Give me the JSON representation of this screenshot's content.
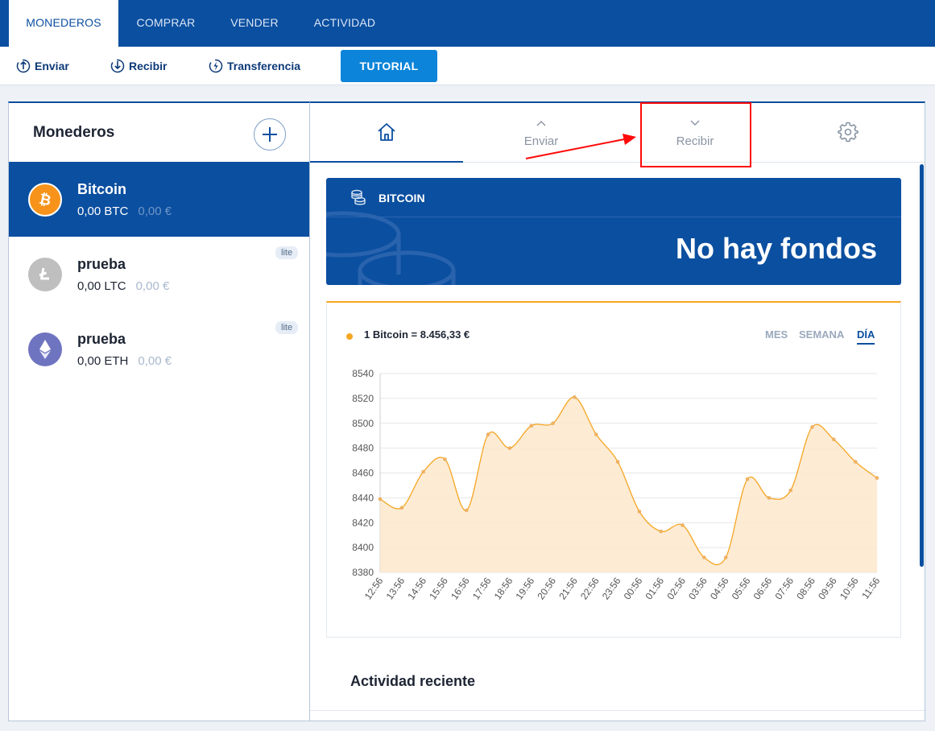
{
  "topnav": {
    "tabs": [
      {
        "label": "MONEDEROS",
        "active": true
      },
      {
        "label": "COMPRAR",
        "active": false
      },
      {
        "label": "VENDER",
        "active": false
      },
      {
        "label": "ACTIVIDAD",
        "active": false
      }
    ]
  },
  "toolbar": {
    "send_label": "Enviar",
    "receive_label": "Recibir",
    "transfer_label": "Transferencia",
    "tutorial_label": "TUTORIAL"
  },
  "wallets_panel": {
    "title": "Monederos",
    "items": [
      {
        "name": "Bitcoin",
        "balance": "0,00 BTC",
        "fiat": "0,00 €",
        "badge": "",
        "selected": true,
        "icon": "bitcoin-icon",
        "color": "#f7931a"
      },
      {
        "name": "prueba",
        "balance": "0,00 LTC",
        "fiat": "0,00 €",
        "badge": "lite",
        "selected": false,
        "icon": "litecoin-icon",
        "color": "#bfbfbf"
      },
      {
        "name": "prueba",
        "balance": "0,00 ETH",
        "fiat": "0,00 €",
        "badge": "lite",
        "selected": false,
        "icon": "ethereum-icon",
        "color": "#6f74c0"
      }
    ]
  },
  "detail": {
    "tabs": [
      {
        "icon": "home-icon",
        "label": ""
      },
      {
        "icon": "chevron-up-icon",
        "label": "Enviar"
      },
      {
        "icon": "chevron-down-icon",
        "label": "Recibir"
      },
      {
        "icon": "gear-icon",
        "label": ""
      }
    ],
    "banner": {
      "coin": "BITCOIN",
      "status": "No hay fondos"
    },
    "price_label": "1 Bitcoin = 8.456,33 €",
    "ranges": [
      {
        "label": "MES",
        "active": false
      },
      {
        "label": "SEMANA",
        "active": false
      },
      {
        "label": "DÍA",
        "active": true
      }
    ],
    "activity_title": "Actividad reciente"
  },
  "colors": {
    "brand": "#0b4fa0",
    "accent": "#0b84d9",
    "chart_line": "#f5a623",
    "chart_fill": "#fde8cc",
    "highlight": "#ff0a0a"
  },
  "chart_data": {
    "type": "area",
    "x": [
      "12:56",
      "13:56",
      "14:56",
      "15:56",
      "16:56",
      "17:56",
      "18:56",
      "19:56",
      "20:56",
      "21:56",
      "22:56",
      "23:56",
      "00:56",
      "01:56",
      "02:56",
      "03:56",
      "04:56",
      "05:56",
      "06:56",
      "07:56",
      "08:56",
      "09:56",
      "10:56",
      "11:56"
    ],
    "series": [
      {
        "values": [
          8439,
          8432,
          8461,
          8471,
          8430,
          8491,
          8480,
          8498,
          8500,
          8521,
          8491,
          8469,
          8429,
          8413,
          8418,
          8392,
          8392,
          8455,
          8440,
          8446,
          8497,
          8487,
          8469,
          8456
        ]
      }
    ],
    "yticks": [
      8380,
      8400,
      8420,
      8440,
      8460,
      8480,
      8500,
      8520,
      8540
    ],
    "ylim": [
      8380,
      8540
    ],
    "grid": true,
    "title": "",
    "xlabel": "",
    "ylabel": ""
  }
}
